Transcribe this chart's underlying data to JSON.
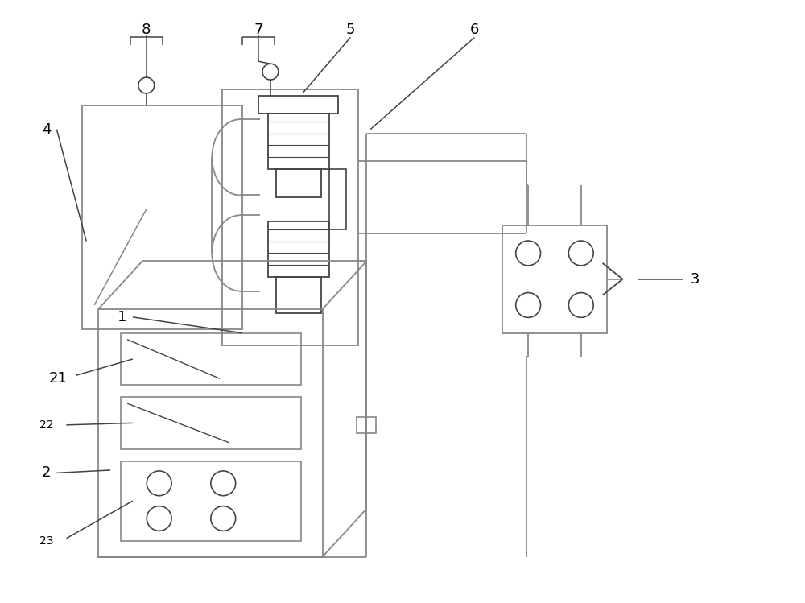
{
  "bg_color": "#ffffff",
  "lc": "#888888",
  "dc": "#444444",
  "thin": "#666666"
}
